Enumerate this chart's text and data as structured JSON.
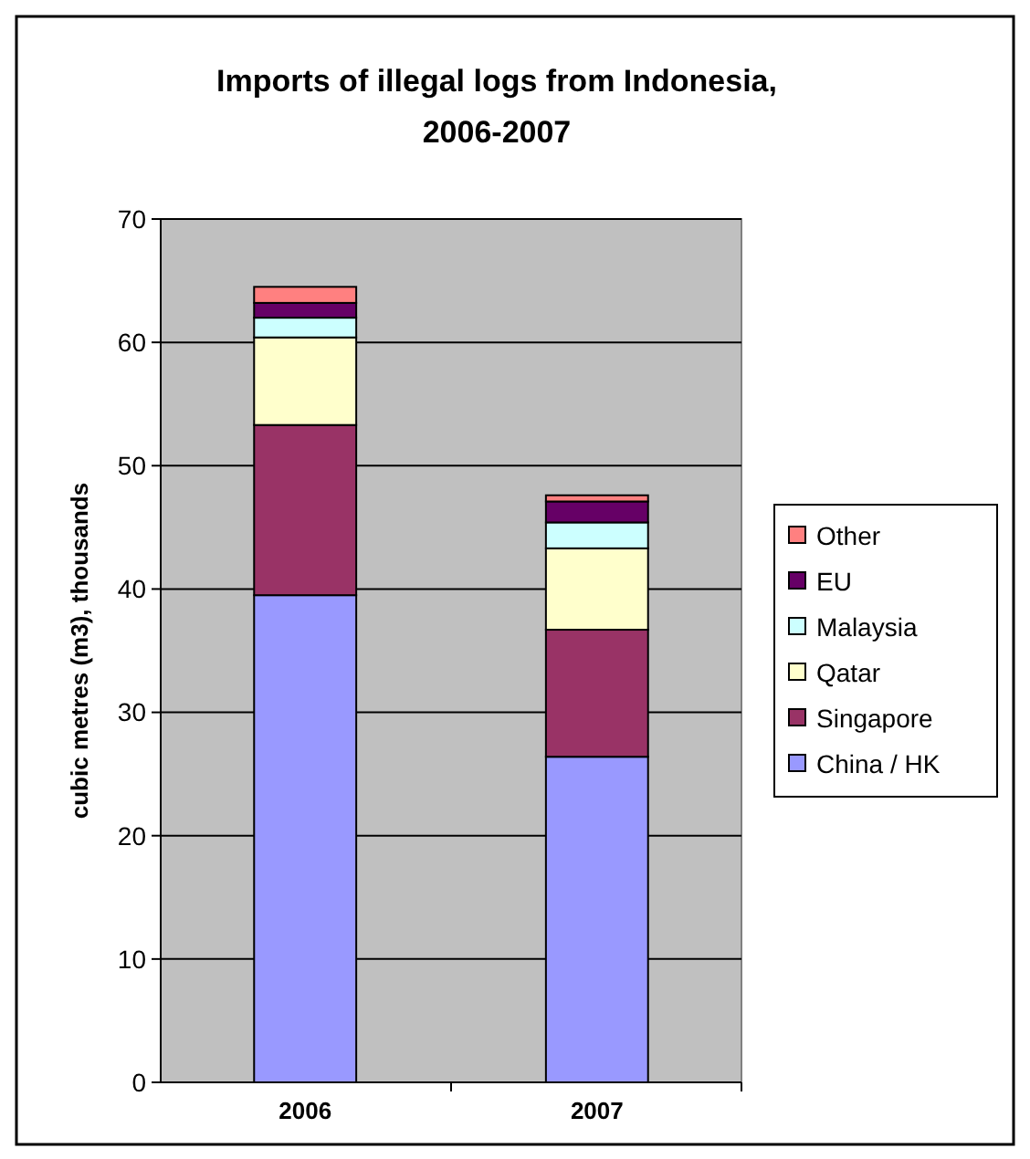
{
  "chart_data": {
    "type": "bar",
    "title": "Imports of illegal logs from Indonesia, 2006-2007",
    "ylabel": "cubic metres (m3), thousands",
    "categories": [
      "2006",
      "2007"
    ],
    "stacked": true,
    "ylim": [
      0,
      70
    ],
    "yticks": [
      0,
      10,
      20,
      30,
      40,
      50,
      60,
      70
    ],
    "grid": "y",
    "legend": "right",
    "series": [
      {
        "name": "China / HK",
        "color": "#9999ff",
        "values": [
          39.5,
          26.4
        ]
      },
      {
        "name": "Singapore",
        "color": "#993366",
        "values": [
          13.8,
          10.3
        ]
      },
      {
        "name": "Qatar",
        "color": "#ffffcc",
        "values": [
          7.1,
          6.6
        ]
      },
      {
        "name": "Malaysia",
        "color": "#ccffff",
        "values": [
          1.6,
          2.1
        ]
      },
      {
        "name": "EU",
        "color": "#660066",
        "values": [
          1.2,
          1.7
        ]
      },
      {
        "name": "Other",
        "color": "#ff8080",
        "values": [
          1.3,
          0.5
        ]
      }
    ]
  }
}
